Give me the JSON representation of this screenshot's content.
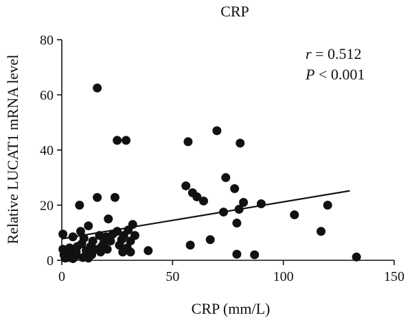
{
  "chart_data": {
    "type": "scatter",
    "title": "CRP",
    "xlabel": "CRP (mm/L)",
    "ylabel": "Relative LUCAT1 mRNA level",
    "xlim": [
      0,
      150
    ],
    "ylim": [
      0,
      80
    ],
    "xticks": [
      0,
      50,
      100,
      150
    ],
    "yticks": [
      0,
      20,
      40,
      60,
      80
    ],
    "grid": false,
    "annotation": {
      "r_symbol": "r",
      "r_value": " = 0.512",
      "p_symbol": "P",
      "p_value": " < 0.001"
    },
    "trend_line": {
      "x": [
        0,
        130
      ],
      "y": [
        7.8,
        25.2
      ]
    },
    "points": [
      [
        0.5,
        9.5
      ],
      [
        0.5,
        4
      ],
      [
        1,
        2
      ],
      [
        1.5,
        0.8
      ],
      [
        2,
        3
      ],
      [
        3,
        1
      ],
      [
        3.5,
        4.5
      ],
      [
        4,
        2.5
      ],
      [
        5,
        0.6
      ],
      [
        5,
        8.5
      ],
      [
        6,
        1.5
      ],
      [
        6.5,
        3
      ],
      [
        7,
        5
      ],
      [
        8,
        20
      ],
      [
        8.5,
        10.5
      ],
      [
        9,
        6
      ],
      [
        9.5,
        1
      ],
      [
        10,
        8
      ],
      [
        11,
        3.5
      ],
      [
        12,
        0.8
      ],
      [
        12,
        12.5
      ],
      [
        13,
        5
      ],
      [
        13.5,
        2
      ],
      [
        14,
        7
      ],
      [
        15,
        4
      ],
      [
        16,
        62.5
      ],
      [
        16,
        22.8
      ],
      [
        17,
        9
      ],
      [
        17.5,
        3
      ],
      [
        18,
        5
      ],
      [
        19,
        6.5
      ],
      [
        20,
        8.5
      ],
      [
        20.5,
        4
      ],
      [
        21,
        15
      ],
      [
        22,
        7
      ],
      [
        23,
        9.5
      ],
      [
        24,
        22.8
      ],
      [
        25,
        43.5
      ],
      [
        25,
        10.5
      ],
      [
        26,
        5.5
      ],
      [
        27,
        7.5
      ],
      [
        27.5,
        3
      ],
      [
        28,
        9
      ],
      [
        29,
        43.5
      ],
      [
        29.5,
        4.5
      ],
      [
        30,
        11
      ],
      [
        31,
        7
      ],
      [
        31,
        3
      ],
      [
        32,
        13
      ],
      [
        33,
        9
      ],
      [
        39,
        3.5
      ],
      [
        56,
        27
      ],
      [
        57,
        43
      ],
      [
        58,
        5.5
      ],
      [
        59,
        24.5
      ],
      [
        61,
        23
      ],
      [
        64,
        21.5
      ],
      [
        67,
        7.5
      ],
      [
        70,
        47
      ],
      [
        73,
        17.5
      ],
      [
        74,
        30
      ],
      [
        78,
        26
      ],
      [
        79,
        13.5
      ],
      [
        79,
        2.2
      ],
      [
        80,
        18.5
      ],
      [
        80.5,
        42.5
      ],
      [
        82,
        21
      ],
      [
        87,
        2
      ],
      [
        90,
        20.5
      ],
      [
        105,
        16.5
      ],
      [
        117,
        10.5
      ],
      [
        120,
        20
      ],
      [
        133,
        1.2
      ]
    ]
  }
}
